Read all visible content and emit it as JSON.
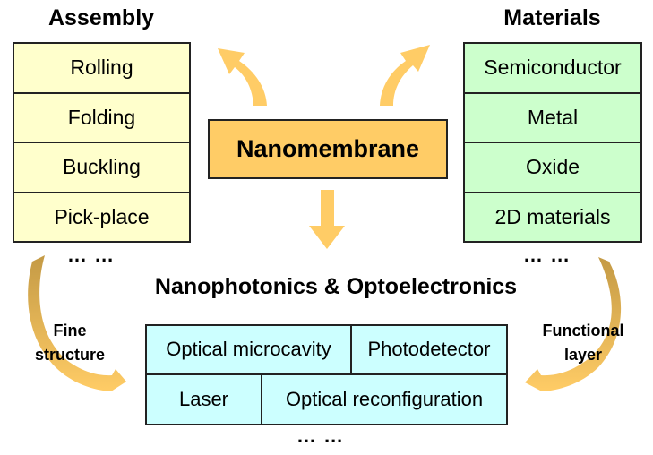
{
  "center": {
    "label": "Nanomembrane"
  },
  "assembly": {
    "title": "Assembly",
    "items": [
      "Rolling",
      "Folding",
      "Buckling",
      "Pick-place"
    ],
    "more": "… …"
  },
  "materials": {
    "title": "Materials",
    "items": [
      "Semiconductor",
      "Metal",
      "Oxide",
      "2D materials"
    ],
    "more": "… …"
  },
  "applications": {
    "title": "Nanophotonics & Optoelectronics",
    "row1": [
      "Optical microcavity",
      "Photodetector"
    ],
    "row2": [
      "Laser",
      "Optical reconfiguration"
    ],
    "more": "… …"
  },
  "side_labels": {
    "left": [
      "Fine",
      "structure"
    ],
    "right": [
      "Functional",
      "layer"
    ]
  },
  "colors": {
    "assembly_fill": "#ffffcc",
    "materials_fill": "#ccffcc",
    "center_fill": "#ffcc66",
    "applications_fill": "#ccffff",
    "arrow_light": "#ffcc66",
    "arrow_dark": "#c9a04a"
  }
}
